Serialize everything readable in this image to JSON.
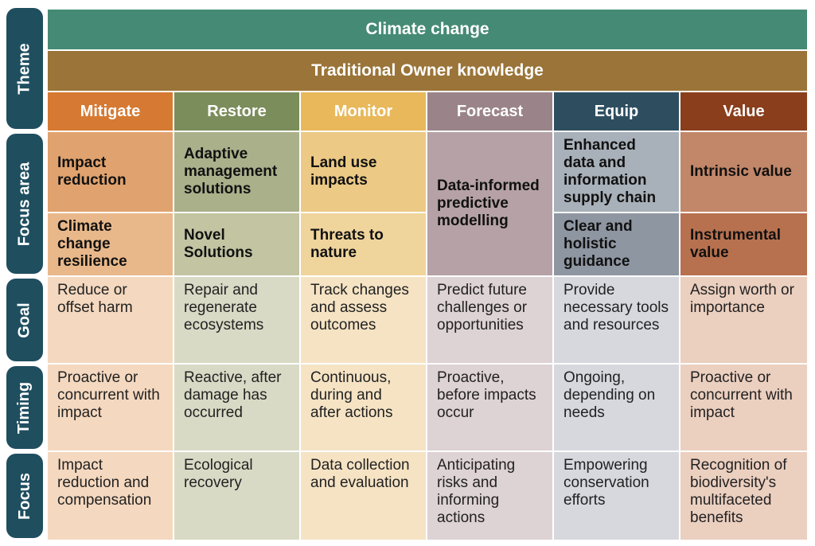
{
  "row_labels": {
    "theme": "Theme",
    "focus_area": "Focus area",
    "goal": "Goal",
    "timing": "Timing",
    "focus": "Focus"
  },
  "banners": {
    "climate": "Climate change",
    "traditional": "Traditional Owner knowledge"
  },
  "columns": [
    {
      "name": "Mitigate",
      "focus_top": "Impact reduction",
      "focus_bottom": "Climate change resilience",
      "goal": "Reduce or offset harm",
      "timing": "Proactive or concurrent with impact",
      "focus": "Impact reduction and compensation"
    },
    {
      "name": "Restore",
      "focus_top": "Adaptive management solutions",
      "focus_bottom": "Novel Solutions",
      "goal": "Repair and regenerate ecosystems",
      "timing": "Reactive, after damage has occurred",
      "focus": "Ecological recovery"
    },
    {
      "name": "Monitor",
      "focus_top": "Land use impacts",
      "focus_bottom": "Threats to nature",
      "goal": "Track changes and assess outcomes",
      "timing": "Continuous, during and after actions",
      "focus": "Data collection and evaluation"
    },
    {
      "name": "Forecast",
      "focus_merged": "Data-informed predictive modelling",
      "goal": "Predict future challenges or opportunities",
      "timing": "Proactive, before impacts occur",
      "focus": "Anticipating risks and informing actions"
    },
    {
      "name": "Equip",
      "focus_top": "Enhanced data and information supply chain",
      "focus_bottom": "Clear and holistic guidance",
      "goal": "Provide necessary tools and resources",
      "timing": "Ongoing, depending on needs",
      "focus": "Empowering conservation efforts"
    },
    {
      "name": "Value",
      "focus_top": "Intrinsic value",
      "focus_bottom": "Instrumental value",
      "goal": "Assign worth or importance",
      "timing": "Proactive or concurrent with impact",
      "focus": "Recognition of biodiversity's multifaceted benefits"
    }
  ],
  "colors": {
    "side_label": "#1f4e5f",
    "climate_banner": "#458a74",
    "traditional_banner": "#9a7438",
    "headers": [
      "#d67a33",
      "#7b8d5b",
      "#e8b85a",
      "#9a848a",
      "#2e4e60",
      "#8a3e1c"
    ],
    "focus_top": [
      "#e0a26e",
      "#aab08a",
      "#ecc985",
      "#b5a1a6",
      "#a8b0b9",
      "#c28668"
    ],
    "focus_bottom": [
      "#e9b88a",
      "#c2c4a2",
      "#efd49c",
      "#b5a1a6",
      "#8e96a2",
      "#b8714f"
    ],
    "body": [
      "#f4d8bf",
      "#d8dac5",
      "#f5e3c4",
      "#ddd2d4",
      "#d6d8de",
      "#ebcfbf"
    ]
  }
}
